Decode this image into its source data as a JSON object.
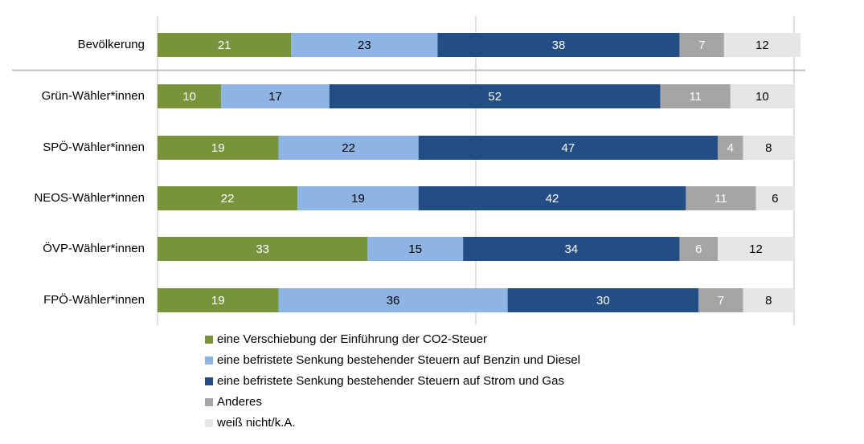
{
  "chart_data": {
    "type": "stacked-bar-horizontal",
    "categories": [
      "Bevölkerung",
      "Grün-Wähler*innen",
      "SPÖ-Wähler*innen",
      "NEOS-Wähler*innen",
      "ÖVP-Wähler*innen",
      "FPÖ-Wähler*innen"
    ],
    "series": [
      {
        "name": "eine Verschiebung der Einführung der CO2-Steuer",
        "color": "#77933c",
        "values": [
          21,
          10,
          19,
          22,
          33,
          19
        ]
      },
      {
        "name": "eine befristete Senkung bestehender Steuern auf Benzin und Diesel",
        "color": "#8db4e2",
        "values": [
          23,
          17,
          22,
          19,
          15,
          36
        ]
      },
      {
        "name": "eine befristete Senkung bestehender Steuern auf Strom und Gas",
        "color": "#234d85",
        "values": [
          38,
          52,
          47,
          42,
          34,
          30
        ]
      },
      {
        "name": "Anderes",
        "color": "#a5a5a5",
        "values": [
          7,
          11,
          4,
          11,
          6,
          7
        ]
      },
      {
        "name": "weiß nicht/k.A.",
        "color": "#e6e6e6",
        "values": [
          12,
          10,
          8,
          6,
          12,
          8
        ]
      }
    ],
    "xlim": [
      0,
      100
    ],
    "xticks": [
      0,
      50,
      100
    ],
    "grid": true
  }
}
